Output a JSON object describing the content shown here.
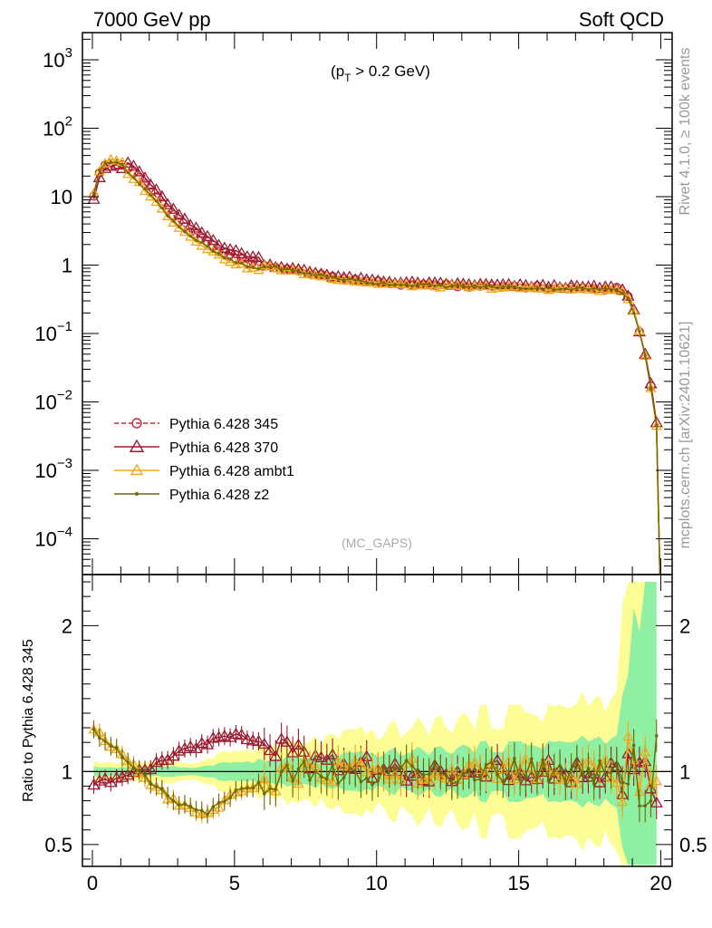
{
  "header": {
    "left": "7000 GeV pp",
    "right": "Soft QCD"
  },
  "side_labels": {
    "rivet": "Rivet 4.1.0, ≥ 100k events",
    "mcplots": "mcplots.cern.ch [arXiv:2401.10621]"
  },
  "chart_data": [
    {
      "type": "line",
      "title": "(pT > 0.2 GeV)",
      "title_main": "(p",
      "title_sub": "T",
      "title_rest": " > 0.2 GeV)",
      "watermark": "(MC_GAPS)",
      "yscale": "log",
      "ylim": [
        3e-05,
        2500
      ],
      "xlim": [
        -0.35,
        20.4
      ],
      "ytick_labels": [
        {
          "value": 1000,
          "base": "10",
          "exp": "3"
        },
        {
          "value": 100,
          "base": "10",
          "exp": "2"
        },
        {
          "value": 10,
          "base": "10",
          "exp": ""
        },
        {
          "value": 1,
          "base": "1",
          "exp": ""
        },
        {
          "value": 0.1,
          "base": "10",
          "exp": "−1"
        },
        {
          "value": 0.01,
          "base": "10",
          "exp": "−2"
        },
        {
          "value": 0.001,
          "base": "10",
          "exp": "−3"
        },
        {
          "value": 0.0001,
          "base": "10",
          "exp": "−4"
        }
      ],
      "legend_position": "lower-left",
      "series": [
        {
          "name": "Pythia 6.428 345",
          "color": "#c8283c",
          "marker": "circle",
          "dashed": true
        },
        {
          "name": "Pythia 6.428 370",
          "color": "#9b1b30",
          "marker": "triangle",
          "dashed": false
        },
        {
          "name": "Pythia 6.428 ambt1",
          "color": "#f0a81a",
          "marker": "triangle",
          "dashed": false
        },
        {
          "name": "Pythia 6.428 z2",
          "color": "#6b6b00",
          "marker": "dot",
          "dashed": false
        }
      ],
      "curve_points": [
        [
          0.0,
          8.5
        ],
        [
          0.2,
          20
        ],
        [
          0.4,
          28
        ],
        [
          0.6,
          31
        ],
        [
          0.8,
          31
        ],
        [
          1.0,
          29
        ],
        [
          1.5,
          22
        ],
        [
          2.0,
          13
        ],
        [
          2.5,
          7.5
        ],
        [
          3.0,
          4.5
        ],
        [
          3.5,
          3.0
        ],
        [
          4.0,
          2.2
        ],
        [
          4.5,
          1.6
        ],
        [
          5.0,
          1.3
        ],
        [
          5.5,
          1.1
        ],
        [
          6.0,
          1.0
        ],
        [
          7.0,
          0.85
        ],
        [
          8.0,
          0.72
        ],
        [
          9.0,
          0.62
        ],
        [
          10.0,
          0.56
        ],
        [
          11.0,
          0.53
        ],
        [
          12.0,
          0.51
        ],
        [
          13.0,
          0.5
        ],
        [
          14.0,
          0.49
        ],
        [
          15.0,
          0.48
        ],
        [
          16.0,
          0.47
        ],
        [
          17.0,
          0.46
        ],
        [
          18.0,
          0.45
        ],
        [
          18.5,
          0.45
        ],
        [
          18.8,
          0.38
        ],
        [
          19.0,
          0.25
        ],
        [
          19.2,
          0.13
        ],
        [
          19.4,
          0.06
        ],
        [
          19.6,
          0.025
        ],
        [
          19.75,
          0.008
        ],
        [
          19.9,
          0.0035
        ]
      ]
    },
    {
      "type": "line",
      "ylabel": "Ratio to Pythia 6.428 345",
      "ylim": [
        0.35,
        2.35
      ],
      "xlim": [
        -0.35,
        20.4
      ],
      "yticks": [
        2,
        1,
        0.5
      ],
      "ytick_labels": [
        "2",
        "1",
        "0.5"
      ],
      "xticks": [
        0,
        5,
        10,
        15,
        20
      ],
      "xtick_labels": [
        "0",
        "5",
        "10",
        "15",
        "20"
      ],
      "reference": 1,
      "band_colors": {
        "inner": "#8ff0a4",
        "outer": "#fdfd96"
      },
      "series": [
        {
          "name": "Pythia 6.428 370",
          "trend": [
            [
              0,
              0.92
            ],
            [
              1,
              0.96
            ],
            [
              2,
              1.03
            ],
            [
              3,
              1.12
            ],
            [
              4,
              1.2
            ],
            [
              5,
              1.24
            ],
            [
              6,
              1.22
            ],
            [
              7,
              1.16
            ],
            [
              8,
              1.08
            ],
            [
              10,
              1.0
            ],
            [
              20,
              1.0
            ]
          ]
        },
        {
          "name": "Pythia 6.428 ambt1",
          "trend": [
            [
              0,
              1.3
            ],
            [
              1,
              1.12
            ],
            [
              2,
              0.92
            ],
            [
              3,
              0.78
            ],
            [
              4,
              0.7
            ],
            [
              5,
              0.85
            ],
            [
              6,
              0.92
            ],
            [
              7,
              0.98
            ],
            [
              8,
              1.0
            ],
            [
              20,
              1.0
            ]
          ]
        },
        {
          "name": "Pythia 6.428 z2",
          "trend": [
            [
              0,
              1.29
            ],
            [
              1,
              1.12
            ],
            [
              2,
              0.93
            ],
            [
              3,
              0.78
            ],
            [
              4,
              0.71
            ],
            [
              5,
              0.86
            ],
            [
              6,
              0.93
            ],
            [
              7,
              0.98
            ],
            [
              8,
              1.0
            ],
            [
              20,
              1.0
            ]
          ]
        }
      ]
    }
  ]
}
